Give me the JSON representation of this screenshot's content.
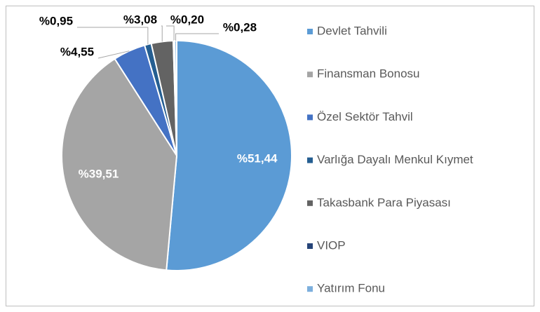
{
  "chart_data": {
    "type": "pie",
    "categories": [
      "Devlet Tahvili",
      "Finansman Bonosu",
      "Özel Sektör Tahvil",
      "Varlığa Dayalı Menkul Kıymet",
      "Takasbank Para Piyasası",
      "VIOP",
      "Yatırım Fonu"
    ],
    "values": [
      51.44,
      39.51,
      4.55,
      0.95,
      3.08,
      0.2,
      0.28
    ],
    "value_labels": [
      "%51,44",
      "%39,51",
      "%4,55",
      "%0,95",
      "%3,08",
      "%0,20",
      "%0,28"
    ],
    "colors": [
      "#5b9bd5",
      "#a5a5a5",
      "#4472c4",
      "#255e91",
      "#636363",
      "#264478",
      "#7cafdd"
    ],
    "legend": "right"
  }
}
